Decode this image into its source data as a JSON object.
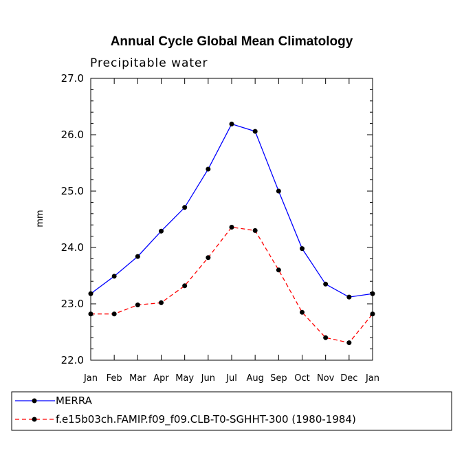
{
  "chart_data": {
    "type": "line",
    "title": "Annual Cycle Global Mean Climatology",
    "subtitle": "Precipitable water",
    "xlabel": "",
    "ylabel": "mm",
    "ylim": [
      22.0,
      27.0
    ],
    "yticks": [
      "22.0",
      "23.0",
      "24.0",
      "25.0",
      "26.0",
      "27.0"
    ],
    "categories": [
      "Jan",
      "Feb",
      "Mar",
      "Apr",
      "May",
      "Jun",
      "Jul",
      "Aug",
      "Sep",
      "Oct",
      "Nov",
      "Dec",
      "Jan"
    ],
    "series": [
      {
        "name": "MERRA",
        "color": "#0000ff",
        "dash": "solid",
        "values": [
          23.18,
          23.49,
          23.84,
          24.29,
          24.71,
          25.39,
          26.19,
          26.06,
          25.0,
          23.98,
          23.35,
          23.12,
          23.18
        ]
      },
      {
        "name": "f.e15b03ch.FAMIP.f09_f09.CLB-T0-SGHHT-300 (1980-1984)",
        "color": "#ff0000",
        "dash": "dashed",
        "values": [
          22.82,
          22.82,
          22.98,
          23.02,
          23.32,
          23.82,
          24.36,
          24.3,
          23.6,
          22.85,
          22.4,
          22.31,
          22.82
        ]
      }
    ],
    "legend_position": "bottom"
  }
}
